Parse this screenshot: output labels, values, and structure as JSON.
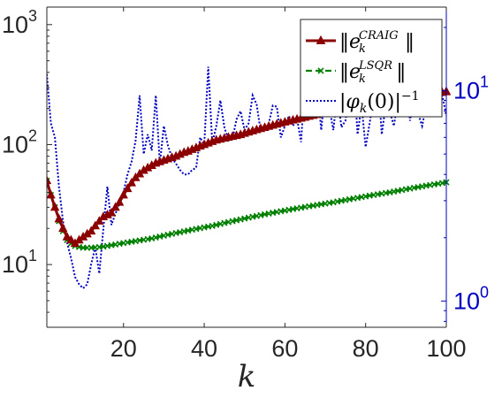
{
  "chart_data": {
    "type": "line",
    "xlabel": "k",
    "xlim": [
      1,
      100
    ],
    "x_ticks": [
      "20",
      "40",
      "60",
      "80",
      "100"
    ],
    "yscale_left": "log",
    "ylim_left": [
      3,
      1400
    ],
    "yticks_left": [
      {
        "base": "10",
        "exp": "1"
      },
      {
        "base": "10",
        "exp": "2"
      },
      {
        "base": "10",
        "exp": "3"
      }
    ],
    "yscale_right": "log",
    "ylim_right": [
      0.75,
      25
    ],
    "yticks_right": [
      {
        "base": "10",
        "exp": "0"
      },
      {
        "base": "10",
        "exp": "1"
      }
    ],
    "legend_position": "top-right",
    "colors": {
      "craig": "#8b0000",
      "lsqr": "#008000",
      "phi": "#0000c0",
      "right_axis": "#0000c0"
    },
    "series": [
      {
        "key": "craig",
        "name": "‖e_k^CRAIG‖",
        "legend": {
          "pre": "‖",
          "base": "e",
          "sub": "k",
          "sup": "CRAIG",
          "post": "‖"
        },
        "axis": "left",
        "style": "solid-triangle",
        "x": [
          1,
          2,
          3,
          4,
          5,
          6,
          7,
          8,
          9,
          10,
          11,
          12,
          13,
          14,
          15,
          16,
          17,
          18,
          19,
          20,
          21,
          22,
          23,
          24,
          25,
          26,
          27,
          28,
          29,
          30,
          31,
          32,
          33,
          34,
          35,
          36,
          37,
          38,
          39,
          40,
          41,
          42,
          43,
          44,
          45,
          46,
          47,
          48,
          49,
          50,
          51,
          52,
          53,
          54,
          55,
          56,
          57,
          58,
          59,
          60,
          61,
          62,
          63,
          64,
          65,
          66,
          67,
          68,
          69,
          70,
          71,
          72,
          73,
          74,
          75,
          76,
          77,
          78,
          79,
          80,
          81,
          82,
          83,
          84,
          85,
          86,
          87,
          88,
          89,
          90,
          91,
          92,
          93,
          94,
          95,
          96,
          97,
          98,
          99,
          100
        ],
        "y": [
          50,
          38,
          30,
          24,
          20,
          17,
          16,
          15,
          16,
          17,
          18,
          19,
          21,
          23,
          25,
          26,
          27,
          30,
          33,
          38,
          43,
          48,
          53,
          57,
          61,
          64,
          67,
          70,
          72,
          74,
          76,
          78,
          80,
          83,
          86,
          88,
          91,
          94,
          97,
          100,
          103,
          106,
          109,
          111,
          113,
          115,
          117,
          119,
          121,
          124,
          127,
          130,
          133,
          136,
          139,
          142,
          145,
          148,
          151,
          154,
          157,
          160,
          163,
          166,
          169,
          172,
          175,
          178,
          181,
          184,
          187,
          190,
          193,
          196,
          199,
          202,
          205,
          208,
          211,
          214,
          217,
          220,
          223,
          226,
          229,
          232,
          235,
          238,
          241,
          244,
          247,
          250,
          253,
          256,
          259,
          262,
          265,
          268,
          272,
          276
        ]
      },
      {
        "key": "lsqr",
        "name": "‖e_k^LSQR‖",
        "legend": {
          "pre": "‖",
          "base": "e",
          "sub": "k",
          "sup": "LSQR",
          "post": "‖"
        },
        "axis": "left",
        "style": "dashed-x",
        "x": [
          1,
          2,
          3,
          4,
          5,
          6,
          7,
          8,
          9,
          10,
          11,
          12,
          13,
          14,
          15,
          16,
          17,
          18,
          19,
          20,
          21,
          22,
          23,
          24,
          25,
          26,
          27,
          28,
          29,
          30,
          31,
          32,
          33,
          34,
          35,
          36,
          37,
          38,
          39,
          40,
          41,
          42,
          43,
          44,
          45,
          46,
          47,
          48,
          49,
          50,
          51,
          52,
          53,
          54,
          55,
          56,
          57,
          58,
          59,
          60,
          61,
          62,
          63,
          64,
          65,
          66,
          67,
          68,
          69,
          70,
          71,
          72,
          73,
          74,
          75,
          76,
          77,
          78,
          79,
          80,
          81,
          82,
          83,
          84,
          85,
          86,
          87,
          88,
          89,
          90,
          91,
          92,
          93,
          94,
          95,
          96,
          97,
          98,
          99,
          100
        ],
        "y": [
          50,
          38,
          30,
          23,
          19,
          16,
          15,
          14.3,
          14.0,
          13.8,
          13.8,
          13.8,
          13.9,
          14.0,
          14.1,
          14.3,
          14.5,
          14.7,
          14.9,
          15.1,
          15.3,
          15.5,
          15.7,
          15.9,
          16.1,
          16.3,
          16.5,
          16.8,
          17.1,
          17.4,
          17.7,
          18.0,
          18.3,
          18.6,
          18.9,
          19.2,
          19.5,
          19.8,
          20.1,
          20.4,
          20.7,
          21.0,
          21.4,
          21.8,
          22.2,
          22.6,
          23.0,
          23.4,
          23.8,
          24.2,
          24.6,
          25.0,
          25.4,
          25.8,
          26.2,
          26.6,
          27.0,
          27.4,
          27.8,
          28.2,
          28.6,
          29.0,
          29.4,
          29.8,
          30.2,
          30.6,
          31.0,
          31.4,
          31.8,
          32.2,
          32.6,
          33.0,
          33.5,
          34.0,
          34.5,
          35.0,
          35.5,
          36.0,
          36.5,
          37.0,
          37.5,
          38.0,
          38.5,
          39.0,
          39.5,
          40.0,
          40.6,
          41.2,
          41.8,
          42.4,
          43.0,
          43.6,
          44.2,
          44.8,
          45.4,
          46.0,
          46.6,
          47.2,
          47.8,
          48.5
        ]
      },
      {
        "key": "phi",
        "name": "|φ_k(0)|^{-1}",
        "legend": {
          "pre": "|",
          "base": "φ",
          "sub": "k",
          "mid": "(0)|",
          "sup": "−1",
          "post": ""
        },
        "axis": "right",
        "style": "dotted",
        "x": [
          1,
          2,
          3,
          4,
          5,
          6,
          7,
          8,
          9,
          10,
          11,
          12,
          13,
          14,
          15,
          16,
          17,
          18,
          19,
          20,
          21,
          22,
          23,
          24,
          25,
          26,
          27,
          28,
          29,
          30,
          31,
          32,
          33,
          34,
          35,
          36,
          37,
          38,
          39,
          40,
          41,
          42,
          43,
          44,
          45,
          46,
          47,
          48,
          49,
          50,
          51,
          52,
          53,
          54,
          55,
          56,
          57,
          58,
          59,
          60,
          61,
          62,
          63,
          64,
          65,
          66,
          67,
          68,
          69,
          70,
          71,
          72,
          73,
          74,
          75,
          76,
          77,
          78,
          79,
          80,
          81,
          82,
          83,
          84,
          85,
          86,
          87,
          88,
          89,
          90,
          91,
          92,
          93,
          94,
          95,
          96,
          97,
          98,
          99,
          100
        ],
        "y": [
          12,
          7,
          6,
          3.5,
          2.4,
          1.9,
          1.6,
          1.3,
          1.2,
          1.15,
          1.2,
          1.5,
          1.8,
          1.35,
          2.2,
          3.5,
          2.3,
          2.6,
          2.9,
          3.3,
          4.0,
          4.6,
          5.8,
          9.5,
          5.0,
          6.2,
          5.2,
          9.5,
          4.5,
          6.8,
          5.5,
          4.8,
          4.5,
          4.2,
          4.0,
          4.0,
          4.2,
          4.3,
          6.0,
          5.5,
          13,
          5.6,
          6.8,
          9.0,
          6.7,
          5.8,
          5.9,
          7.3,
          8.0,
          6.5,
          7.0,
          9.5,
          8.6,
          6.4,
          6.5,
          7.0,
          8.5,
          8.4,
          6.0,
          6.8,
          7.6,
          6.8,
          7.4,
          5.7,
          11.5,
          7.5,
          8.9,
          10.5,
          6.5,
          10.2,
          8.3,
          6.5,
          9.8,
          6.7,
          7.2,
          9.8,
          13,
          6.2,
          8.5,
          5.4,
          7.0,
          9.4,
          12,
          6.2,
          8.6,
          8.0,
          6.8,
          9.0,
          8.5,
          12.5,
          7.2,
          9.3,
          7.8,
          6.8,
          8.5,
          11,
          12,
          7.9,
          9.5,
          7.6
        ]
      }
    ]
  }
}
